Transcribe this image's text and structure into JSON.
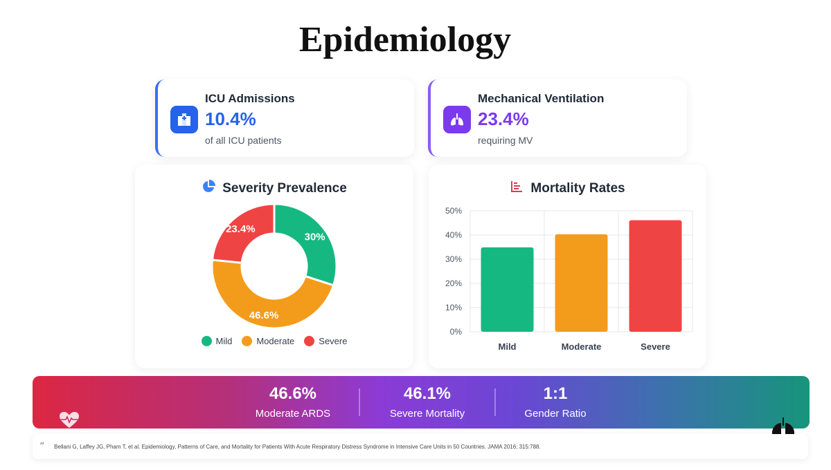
{
  "page": {
    "title": "Epidemiology"
  },
  "stats": [
    {
      "label": "ICU Admissions",
      "value": "10.4%",
      "sub": "of all ICU patients",
      "icon": "hospital-icon",
      "color": "#2563eb"
    },
    {
      "label": "Mechanical Ventilation",
      "value": "23.4%",
      "sub": "requiring MV",
      "icon": "lungs-icon",
      "color": "#7c3aed"
    }
  ],
  "severity": {
    "title": "Severity Prevalence",
    "icon": "pie-chart-icon"
  },
  "mortality": {
    "title": "Mortality Rates",
    "icon": "bar-chart-icon"
  },
  "chart_data": [
    {
      "type": "pie",
      "title": "Severity Prevalence",
      "categories": [
        "Mild",
        "Moderate",
        "Severe"
      ],
      "values": [
        30,
        46.6,
        23.4
      ],
      "labels": [
        "30%",
        "46.6%",
        "23.4%"
      ],
      "colors": [
        "#16b881",
        "#f39c1c",
        "#ef4444"
      ],
      "legend": "bottom"
    },
    {
      "type": "bar",
      "title": "Mortality Rates",
      "categories": [
        "Mild",
        "Moderate",
        "Severe"
      ],
      "values": [
        34.9,
        40.3,
        46.1
      ],
      "colors": [
        "#16b881",
        "#f39c1c",
        "#ef4444"
      ],
      "ylim": [
        0,
        50
      ],
      "yticks": [
        0,
        10,
        20,
        30,
        40,
        50
      ],
      "ytick_labels": [
        "0%",
        "10%",
        "20%",
        "30%",
        "40%",
        "50%"
      ],
      "grid": true
    }
  ],
  "banner": {
    "metrics": [
      {
        "value": "46.6%",
        "label": "Moderate ARDS"
      },
      {
        "value": "46.1%",
        "label": "Severe Mortality"
      },
      {
        "value": "1:1",
        "label": "Gender Ratio"
      }
    ],
    "left_icon": "heartbeat-icon",
    "right_icon": "lungs-icon"
  },
  "citation": {
    "icon": "quote-icon",
    "text": "Bellani G, Laffey JG, Pham T, et al. Epidemiology, Patterns of Care, and Mortality for Patients With Acute Respiratory Distress Syndrome in Intensive Care Units in 50 Countries. JAMA 2016; 315:788."
  }
}
